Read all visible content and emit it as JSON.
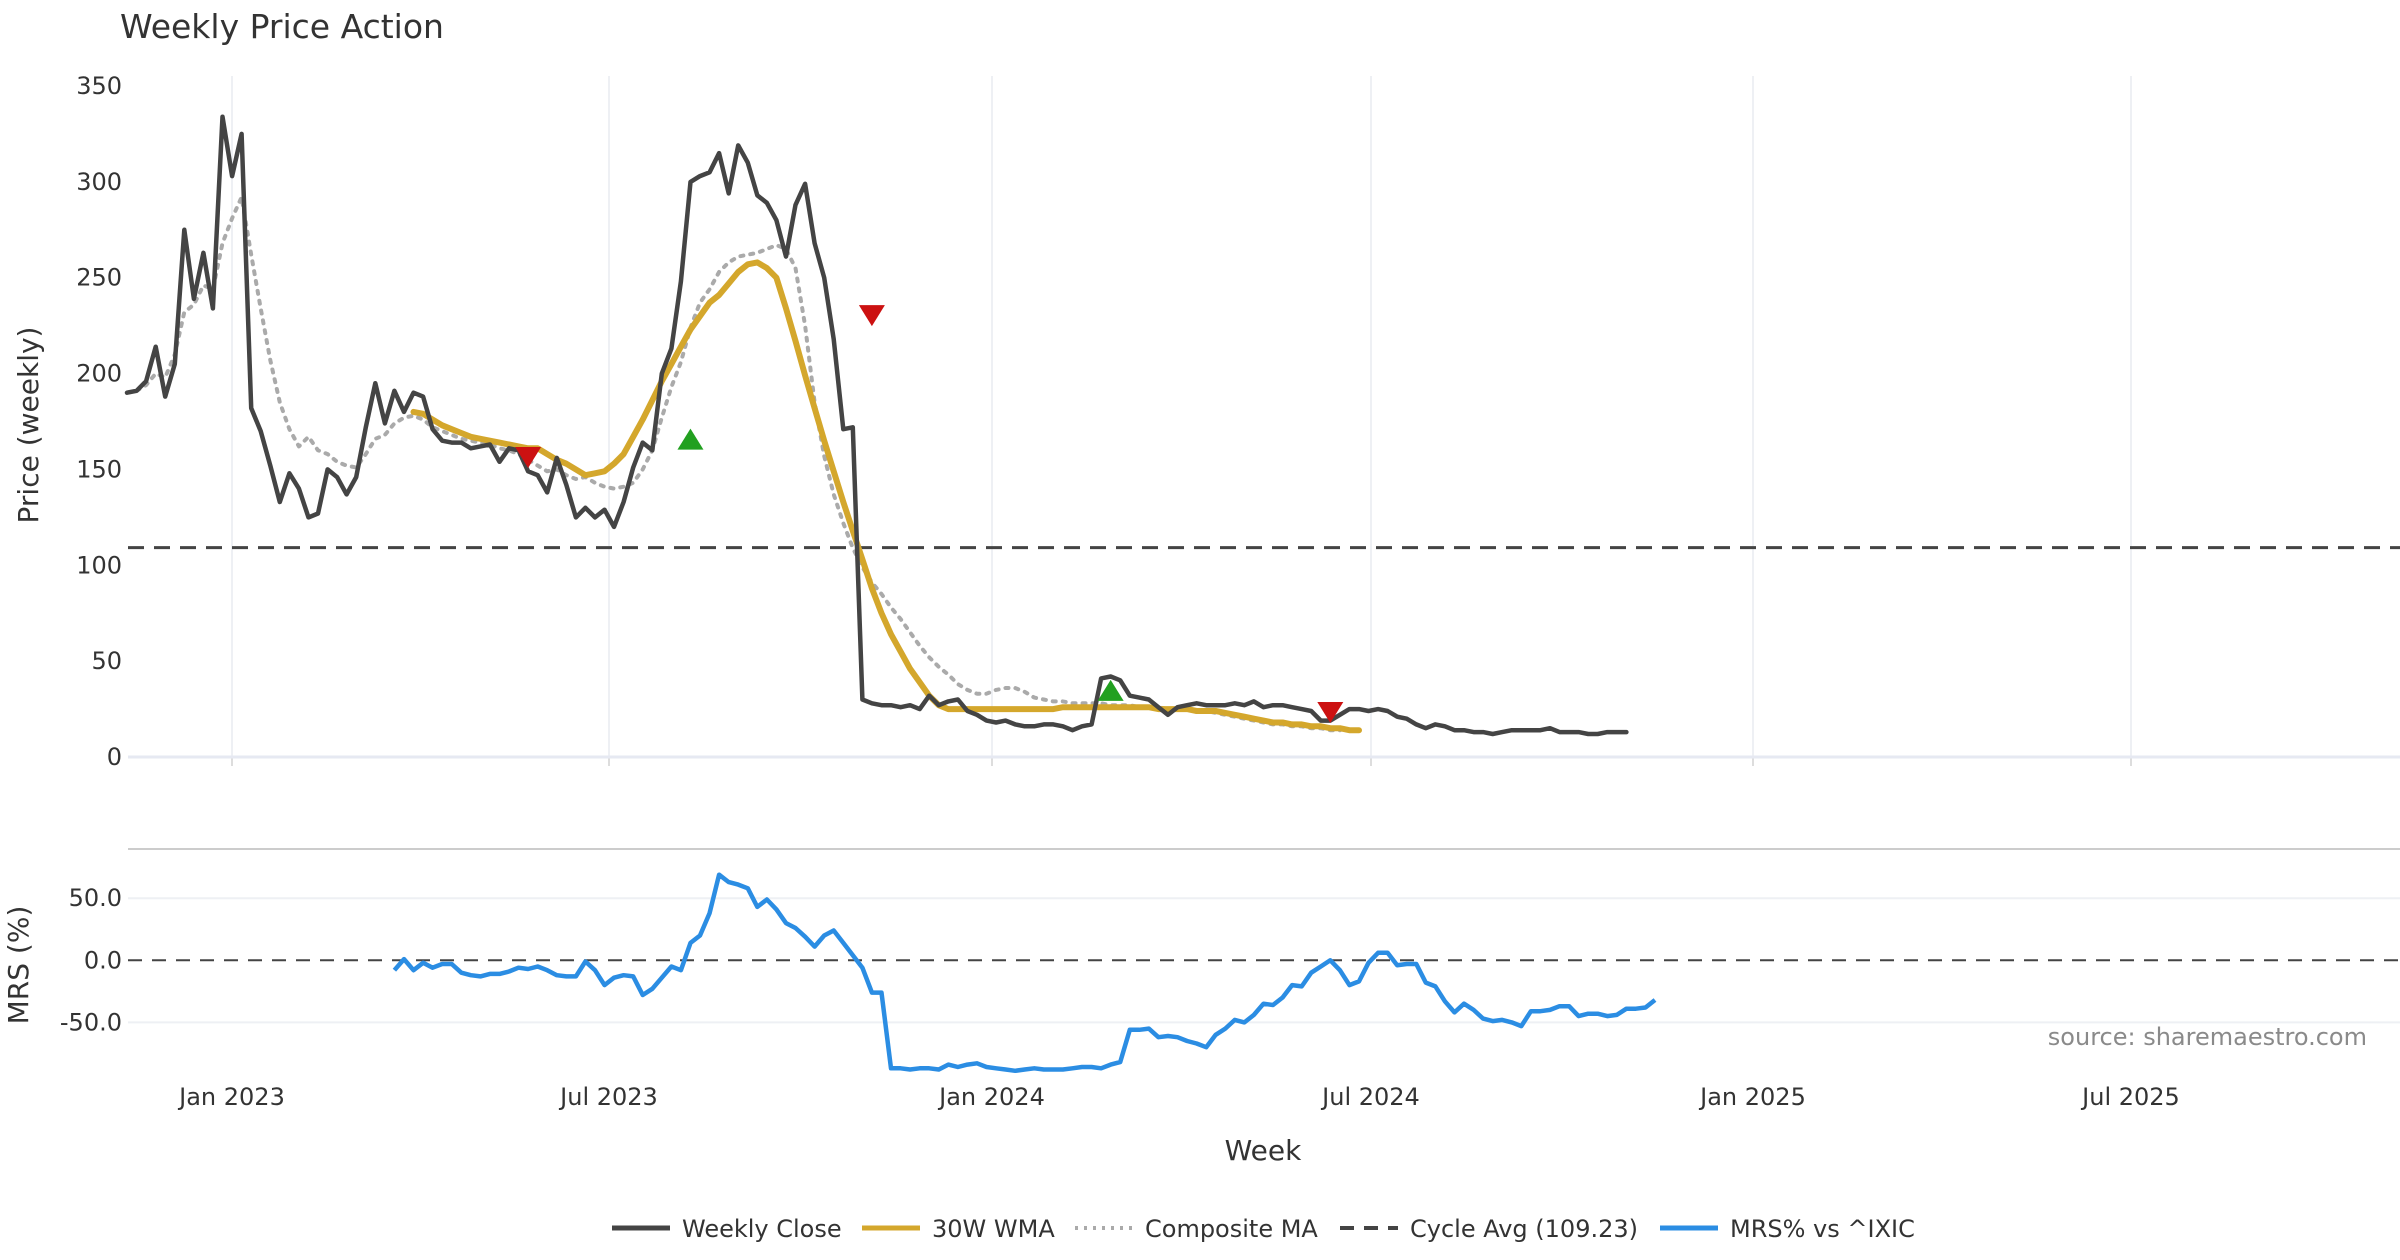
{
  "chart_data": {
    "type": "line",
    "title": "Weekly Price Action",
    "xlabel": "Week",
    "x_ticks": [
      "Jan 2023",
      "Jul 2023",
      "Jan 2024",
      "Jul 2024",
      "Jan 2025",
      "Jul 2025"
    ],
    "source_text": "source: sharemaestro.com",
    "price_panel": {
      "ylabel": "Price (weekly)",
      "ylim": [
        0,
        350
      ],
      "y_ticks": [
        "0",
        "50",
        "100",
        "150",
        "200",
        "250",
        "300",
        "350"
      ],
      "series": [
        {
          "name": "Weekly Close",
          "color": "#444444",
          "values": [
            190,
            191,
            196,
            214,
            188,
            205,
            275,
            239,
            263,
            234,
            334,
            303,
            325,
            182,
            170,
            152,
            133,
            148,
            140,
            125,
            127,
            150,
            146,
            137,
            146,
            172,
            195,
            174,
            191,
            180,
            190,
            188,
            171,
            165,
            164,
            164,
            161,
            162,
            163,
            154,
            161,
            160,
            149,
            147,
            138,
            156,
            142,
            125,
            130,
            125,
            129,
            120,
            133,
            151,
            164,
            160,
            200,
            213,
            248,
            300,
            303,
            305,
            315,
            294,
            319,
            310,
            293,
            289,
            280,
            261,
            288,
            299,
            268,
            250,
            218,
            171,
            172,
            30,
            28,
            27,
            27,
            26,
            27,
            25,
            32,
            27,
            29,
            30,
            24,
            22,
            19,
            18,
            19,
            17,
            16,
            16,
            17,
            17,
            16,
            14,
            16,
            17,
            41,
            42,
            40,
            32,
            31,
            30,
            26,
            22,
            26,
            27,
            28,
            27,
            27,
            27,
            28,
            27,
            29,
            26,
            27,
            27,
            26,
            25,
            24,
            19,
            19,
            22,
            25,
            25,
            24,
            25,
            24,
            21,
            20,
            17,
            15,
            17,
            16,
            14,
            14,
            13,
            13,
            12,
            13,
            14,
            14,
            14,
            14,
            15,
            13,
            13,
            13,
            12,
            12,
            13,
            13,
            13
          ],
          "start_index": 0
        },
        {
          "name": "30W WMA",
          "color": "#d4a72c",
          "values": [
            180,
            179,
            176,
            173,
            171,
            169,
            167,
            166,
            165,
            164,
            163,
            162,
            161,
            161,
            158,
            155,
            153,
            150,
            147,
            148,
            149,
            153,
            158,
            167,
            176,
            186,
            196,
            205,
            214,
            223,
            230,
            237,
            241,
            247,
            253,
            257,
            258,
            255,
            250,
            234,
            217,
            199,
            182,
            165,
            149,
            133,
            118,
            103,
            88,
            75,
            64,
            55,
            46,
            39,
            32,
            27,
            25,
            25,
            25,
            25,
            25,
            25,
            25,
            25,
            25,
            25,
            25,
            25,
            26,
            26,
            26,
            26,
            26,
            26,
            26,
            26,
            26,
            26,
            25,
            25,
            25,
            25,
            24,
            24,
            24,
            23,
            22,
            21,
            20,
            19,
            18,
            18,
            17,
            17,
            16,
            16,
            15,
            15,
            14,
            14
          ],
          "start_index": 30
        },
        {
          "name": "Composite MA",
          "color": "#aaaaaa",
          "values": [
            190,
            191,
            194,
            200,
            198,
            210,
            232,
            236,
            246,
            244,
            268,
            281,
            292,
            262,
            234,
            207,
            185,
            171,
            162,
            167,
            160,
            158,
            154,
            152,
            151,
            158,
            166,
            168,
            174,
            177,
            178,
            176,
            172,
            170,
            168,
            166,
            165,
            164,
            163,
            161,
            160,
            158,
            155,
            152,
            149,
            150,
            147,
            145,
            146,
            143,
            141,
            140,
            141,
            143,
            150,
            160,
            177,
            193,
            206,
            224,
            237,
            244,
            253,
            258,
            261,
            262,
            263,
            265,
            267,
            265,
            255,
            225,
            185,
            157,
            137,
            122,
            109,
            99,
            91,
            85,
            78,
            72,
            65,
            58,
            52,
            47,
            43,
            38,
            35,
            33,
            33,
            35,
            36,
            36,
            34,
            31,
            30,
            29,
            29,
            28,
            28,
            28,
            28,
            27,
            27,
            27,
            26,
            26,
            26,
            25,
            25,
            25,
            24,
            24,
            23,
            22,
            21,
            20,
            19,
            18,
            17,
            17,
            16,
            16,
            15,
            15,
            14,
            14
          ],
          "start_index": 0
        }
      ],
      "cycle_avg": {
        "name": "Cycle Avg (109.23)",
        "value": 109.23,
        "color": "#444444"
      },
      "buy_signals": [
        {
          "index": 59,
          "value": 165
        },
        {
          "index": 103,
          "value": 34
        }
      ],
      "sell_signals": [
        {
          "index": 42,
          "value": 157
        },
        {
          "index": 78,
          "value": 231
        },
        {
          "index": 126,
          "value": 24
        }
      ]
    },
    "mrs_panel": {
      "ylabel": "MRS (%)",
      "ylim": [
        -90,
        80
      ],
      "y_ticks": [
        "50.0",
        "0.0",
        "-50.0"
      ],
      "series": {
        "name": "MRS% vs ^IXIC",
        "color": "#2b8de3",
        "start_index": 28,
        "values": [
          -8,
          1,
          -8,
          -2,
          -6,
          -3,
          -3,
          -10,
          -12,
          -13,
          -11,
          -11,
          -9,
          -6,
          -7,
          -5,
          -8,
          -12,
          -13,
          -13,
          -1,
          -8,
          -20,
          -14,
          -12,
          -13,
          -28,
          -23,
          -14,
          -5,
          -8,
          14,
          20,
          38,
          69,
          63,
          61,
          58,
          43,
          49,
          41,
          30,
          26,
          19,
          11,
          20,
          24,
          14,
          4,
          -6,
          -26,
          -26,
          -87,
          -87,
          -88,
          -87,
          -87,
          -88,
          -84,
          -86,
          -84,
          -83,
          -86,
          -87,
          -88,
          -89,
          -88,
          -87,
          -88,
          -88,
          -88,
          -87,
          -86,
          -86,
          -87,
          -84,
          -82,
          -56,
          -56,
          -55,
          -62,
          -61,
          -62,
          -65,
          -67,
          -70,
          -60,
          -55,
          -48,
          -50,
          -44,
          -35,
          -36,
          -30,
          -20,
          -21,
          -10,
          -5,
          0,
          -8,
          -20,
          -17,
          -2,
          6,
          6,
          -4,
          -3,
          -3,
          -18,
          -21,
          -33,
          -42,
          -35,
          -40,
          -47,
          -49,
          -48,
          -50,
          -53,
          -41,
          -41,
          -40,
          -37,
          -37,
          -45,
          -43,
          -43,
          -45,
          -44,
          -39,
          -39,
          -38,
          -32
        ]
      }
    },
    "legend": [
      {
        "label": "Weekly Close",
        "style": "solid",
        "color": "#444444"
      },
      {
        "label": "30W WMA",
        "style": "solid",
        "color": "#d4a72c"
      },
      {
        "label": "Composite MA",
        "style": "dotted",
        "color": "#aaaaaa"
      },
      {
        "label": "Cycle Avg (109.23)",
        "style": "dashed",
        "color": "#444444"
      },
      {
        "label": "MRS% vs ^IXIC",
        "style": "solid",
        "color": "#2b8de3"
      }
    ],
    "signal_colors": {
      "buy": "#22a020",
      "sell": "#cc1111"
    }
  }
}
